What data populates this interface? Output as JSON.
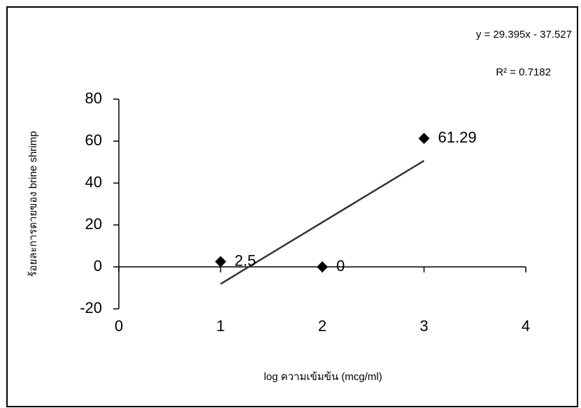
{
  "chart_data": {
    "type": "scatter",
    "x_label": "log ความเข้มข้น (mcg/ml)",
    "y_label": "ร้อยละการตายของ brine shrimp",
    "x": [
      1,
      2,
      3
    ],
    "values": [
      2.5,
      0,
      61.29
    ],
    "color": "#000000",
    "xlim": [
      0,
      4
    ],
    "xticks": [
      0,
      1,
      2,
      3,
      4
    ],
    "ylim": [
      -20,
      80
    ],
    "yticks": [
      -20,
      0,
      20,
      40,
      60,
      80
    ],
    "trendline": {
      "slope": 29.395,
      "intercept": -37.527,
      "color": "#333333",
      "equation": "y = 29.395x - 37.527",
      "r_squared": "R² = 0.7182"
    }
  }
}
